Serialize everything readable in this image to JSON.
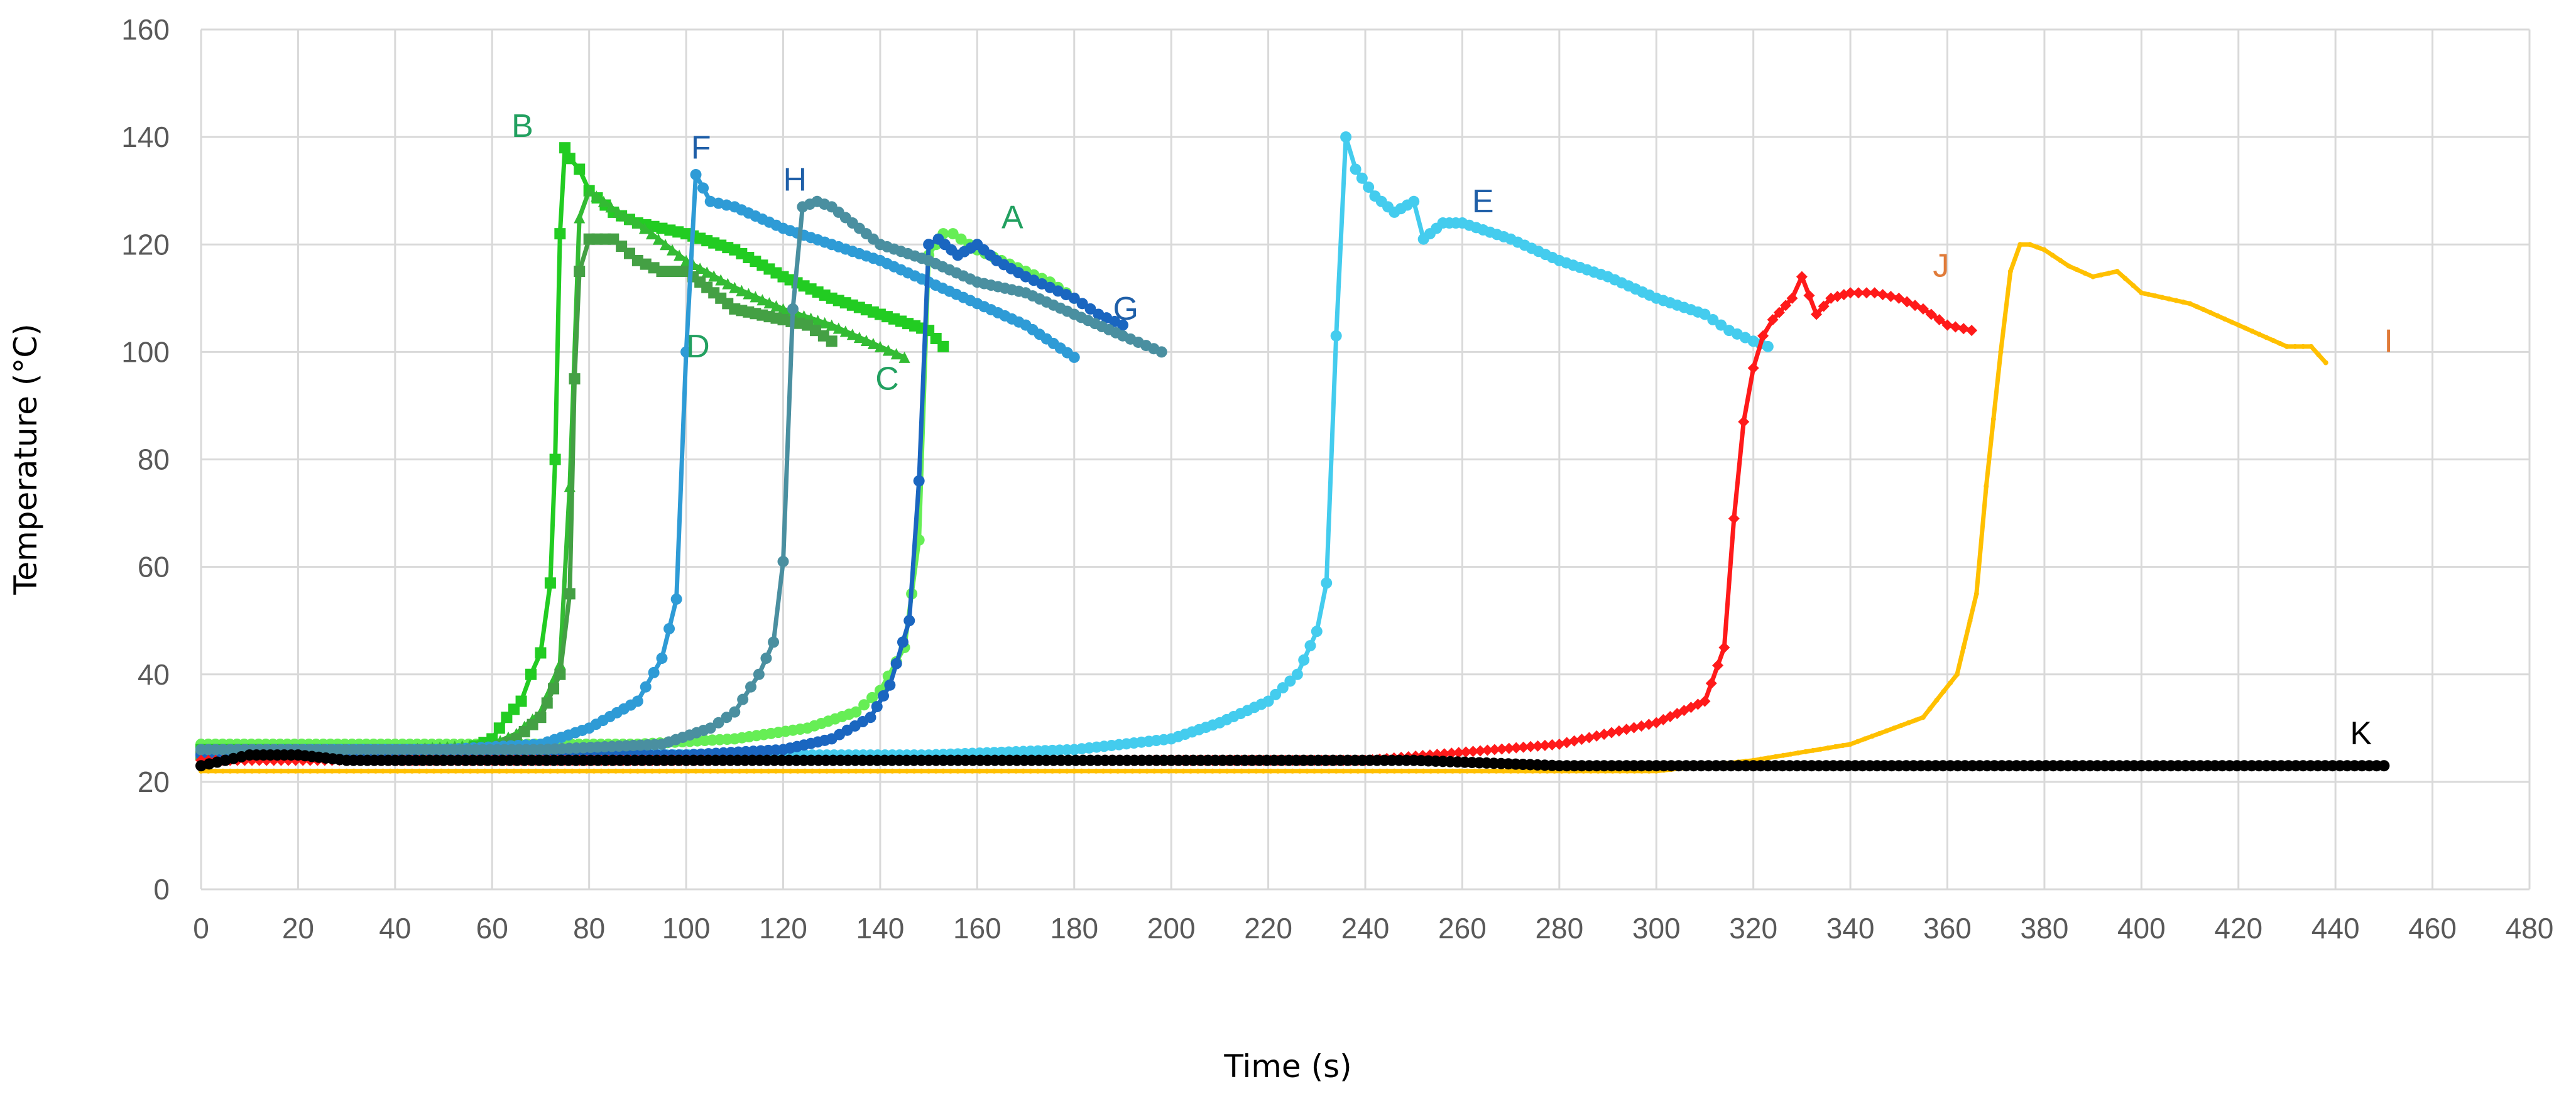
{
  "chart_data": {
    "type": "line",
    "title": "",
    "xlabel": "Time (s)",
    "ylabel": "Temperature (°C)",
    "xlim": [
      0,
      480
    ],
    "ylim": [
      0,
      160
    ],
    "x_ticks": [
      0,
      20,
      40,
      60,
      80,
      100,
      120,
      140,
      160,
      180,
      200,
      220,
      240,
      260,
      280,
      300,
      320,
      340,
      360,
      380,
      400,
      420,
      440,
      460,
      480
    ],
    "y_ticks": [
      0,
      20,
      40,
      60,
      80,
      100,
      120,
      140,
      160
    ],
    "grid": true,
    "legend": "none (inline series labels)",
    "series": [
      {
        "name": "A",
        "color": "#66ee55",
        "marker": "circle",
        "label_pos": [
          165,
          123
        ],
        "x": [
          0,
          40,
          90,
          110,
          125,
          135,
          140,
          145,
          148,
          150,
          153,
          155,
          160,
          165,
          170,
          175,
          180
        ],
        "y": [
          27,
          27,
          27,
          28,
          30,
          33,
          37,
          45,
          65,
          118,
          122,
          122,
          119,
          117,
          115,
          113,
          110
        ]
      },
      {
        "name": "B",
        "color": "#22cc22",
        "marker": "square",
        "label_pos": [
          64,
          140
        ],
        "x": [
          0,
          40,
          55,
          60,
          63,
          66,
          68,
          70,
          72,
          73,
          74,
          75,
          76,
          78,
          80,
          85,
          90,
          95,
          100,
          110,
          120,
          130,
          140,
          150,
          153
        ],
        "y": [
          26,
          26,
          26,
          28,
          32,
          35,
          40,
          44,
          57,
          80,
          122,
          138,
          136,
          134,
          130,
          126,
          124,
          123,
          122,
          119,
          114,
          110,
          107,
          104,
          101
        ]
      },
      {
        "name": "C",
        "color": "#33bb33",
        "marker": "triangle",
        "label_pos": [
          139,
          93
        ],
        "x": [
          0,
          40,
          60,
          65,
          70,
          74,
          76,
          78,
          80,
          83,
          86,
          90,
          100,
          110,
          120,
          130,
          140,
          145
        ],
        "y": [
          26,
          26,
          27,
          29,
          33,
          42,
          75,
          125,
          130,
          128,
          126,
          124,
          117,
          112,
          108,
          105,
          101,
          99
        ]
      },
      {
        "name": "D",
        "color": "#44a044",
        "marker": "square",
        "label_pos": [
          100,
          99
        ],
        "x": [
          0,
          40,
          60,
          65,
          70,
          74,
          76,
          77,
          78,
          80,
          85,
          90,
          95,
          100,
          110,
          120,
          125,
          130
        ],
        "y": [
          25,
          25,
          26,
          28,
          32,
          40,
          55,
          95,
          115,
          121,
          121,
          117,
          115,
          115,
          108,
          106,
          105,
          102
        ]
      },
      {
        "name": "E",
        "color": "#44ccee",
        "marker": "circle",
        "label_pos": [
          262,
          126
        ],
        "x": [
          0,
          150,
          180,
          200,
          210,
          220,
          226,
          230,
          232,
          234,
          236,
          238,
          242,
          246,
          250,
          252,
          256,
          260,
          270,
          280,
          290,
          300,
          310,
          315,
          320,
          323
        ],
        "y": [
          25,
          25,
          26,
          28,
          31,
          35,
          40,
          48,
          57,
          103,
          140,
          134,
          129,
          126,
          128,
          121,
          124,
          124,
          121,
          117,
          114,
          110,
          107,
          104,
          102,
          101
        ]
      },
      {
        "name": "F",
        "color": "#2e9bd6",
        "marker": "circle",
        "label_pos": [
          101,
          136
        ],
        "x": [
          0,
          50,
          70,
          80,
          90,
          95,
          98,
          100,
          102,
          105,
          110,
          120,
          130,
          140,
          150,
          160,
          170,
          180
        ],
        "y": [
          26,
          26,
          27,
          30,
          35,
          43,
          54,
          100,
          133,
          128,
          127,
          123,
          120,
          117,
          113,
          109,
          105,
          99
        ]
      },
      {
        "name": "G",
        "color": "#1a66c0",
        "marker": "circle",
        "label_pos": [
          188,
          106
        ],
        "x": [
          0,
          100,
          120,
          130,
          138,
          142,
          146,
          148,
          150,
          152,
          156,
          160,
          164,
          170,
          175,
          180,
          185,
          190
        ],
        "y": [
          25,
          25,
          26,
          28,
          32,
          38,
          50,
          76,
          120,
          121,
          118,
          120,
          117,
          114,
          112,
          110,
          107,
          105
        ]
      },
      {
        "name": "H",
        "color": "#4a8fa0",
        "marker": "circle",
        "label_pos": [
          120,
          130
        ],
        "x": [
          0,
          70,
          95,
          105,
          110,
          115,
          118,
          120,
          122,
          124,
          127,
          130,
          140,
          150,
          160,
          170,
          180,
          190,
          198
        ],
        "y": [
          26,
          26,
          27,
          30,
          33,
          40,
          46,
          61,
          108,
          127,
          128,
          127,
          120,
          117,
          113,
          111,
          107,
          103,
          100
        ]
      },
      {
        "name": "I",
        "color": "#ffc000",
        "marker": "dash",
        "label_pos": [
          450,
          100
        ],
        "x": [
          0,
          300,
          320,
          340,
          355,
          362,
          366,
          368,
          371,
          373,
          375,
          377,
          380,
          385,
          390,
          395,
          400,
          410,
          420,
          430,
          435,
          438
        ],
        "y": [
          22,
          22,
          24,
          27,
          32,
          40,
          55,
          75,
          100,
          115,
          120,
          120,
          119,
          116,
          114,
          115,
          111,
          109,
          105,
          101,
          101,
          98
        ]
      },
      {
        "name": "J",
        "color": "#ff1a1a",
        "marker": "diamond",
        "label_pos": [
          357,
          114
        ],
        "x": [
          0,
          240,
          280,
          300,
          310,
          314,
          316,
          318,
          320,
          322,
          324,
          328,
          330,
          333,
          336,
          340,
          345,
          350,
          355,
          360,
          365
        ],
        "y": [
          24,
          24,
          27,
          31,
          35,
          45,
          69,
          87,
          97,
          103,
          106,
          110,
          114,
          107,
          110,
          111,
          111,
          110,
          108,
          105,
          104
        ]
      },
      {
        "name": "K",
        "color": "#000000",
        "marker": "circle",
        "label_pos": [
          443,
          27
        ],
        "x": [
          0,
          5,
          10,
          20,
          30,
          40,
          50,
          100,
          150,
          200,
          250,
          280,
          300,
          320,
          350,
          400,
          450
        ],
        "y": [
          23,
          24,
          25,
          25,
          24,
          24,
          24,
          24,
          24,
          24,
          24,
          23,
          23,
          23,
          23,
          23,
          23
        ]
      }
    ]
  }
}
